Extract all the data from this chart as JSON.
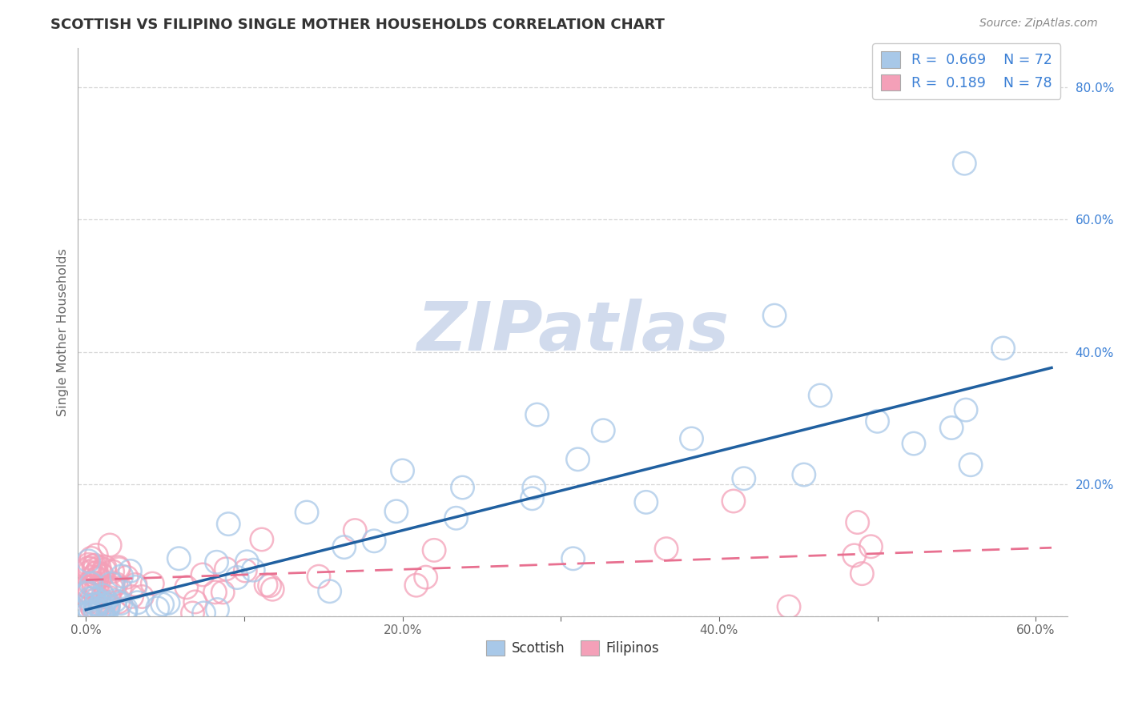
{
  "title": "SCOTTISH VS FILIPINO SINGLE MOTHER HOUSEHOLDS CORRELATION CHART",
  "source": "Source: ZipAtlas.com",
  "ylabel_label": "Single Mother Households",
  "xlim": [
    0.0,
    0.62
  ],
  "ylim": [
    0.0,
    0.86
  ],
  "scottish_R": 0.669,
  "scottish_N": 72,
  "filipino_R": 0.189,
  "filipino_N": 78,
  "scottish_color": "#a8c8e8",
  "scottish_edge_color": "#7aaed4",
  "filipino_color": "#f4a0b8",
  "filipino_edge_color": "#e87090",
  "scottish_line_color": "#2060a0",
  "filipino_line_color": "#e87090",
  "watermark": "ZIPatlas",
  "watermark_color_rgb": [
    0.82,
    0.86,
    0.93
  ],
  "legend_label_color": "#3a7fd5",
  "xtick_color": "#666666",
  "ytick_color": "#3a7fd5",
  "grid_color": "#cccccc",
  "title_color": "#333333",
  "source_color": "#888888",
  "ylabel_color": "#666666"
}
